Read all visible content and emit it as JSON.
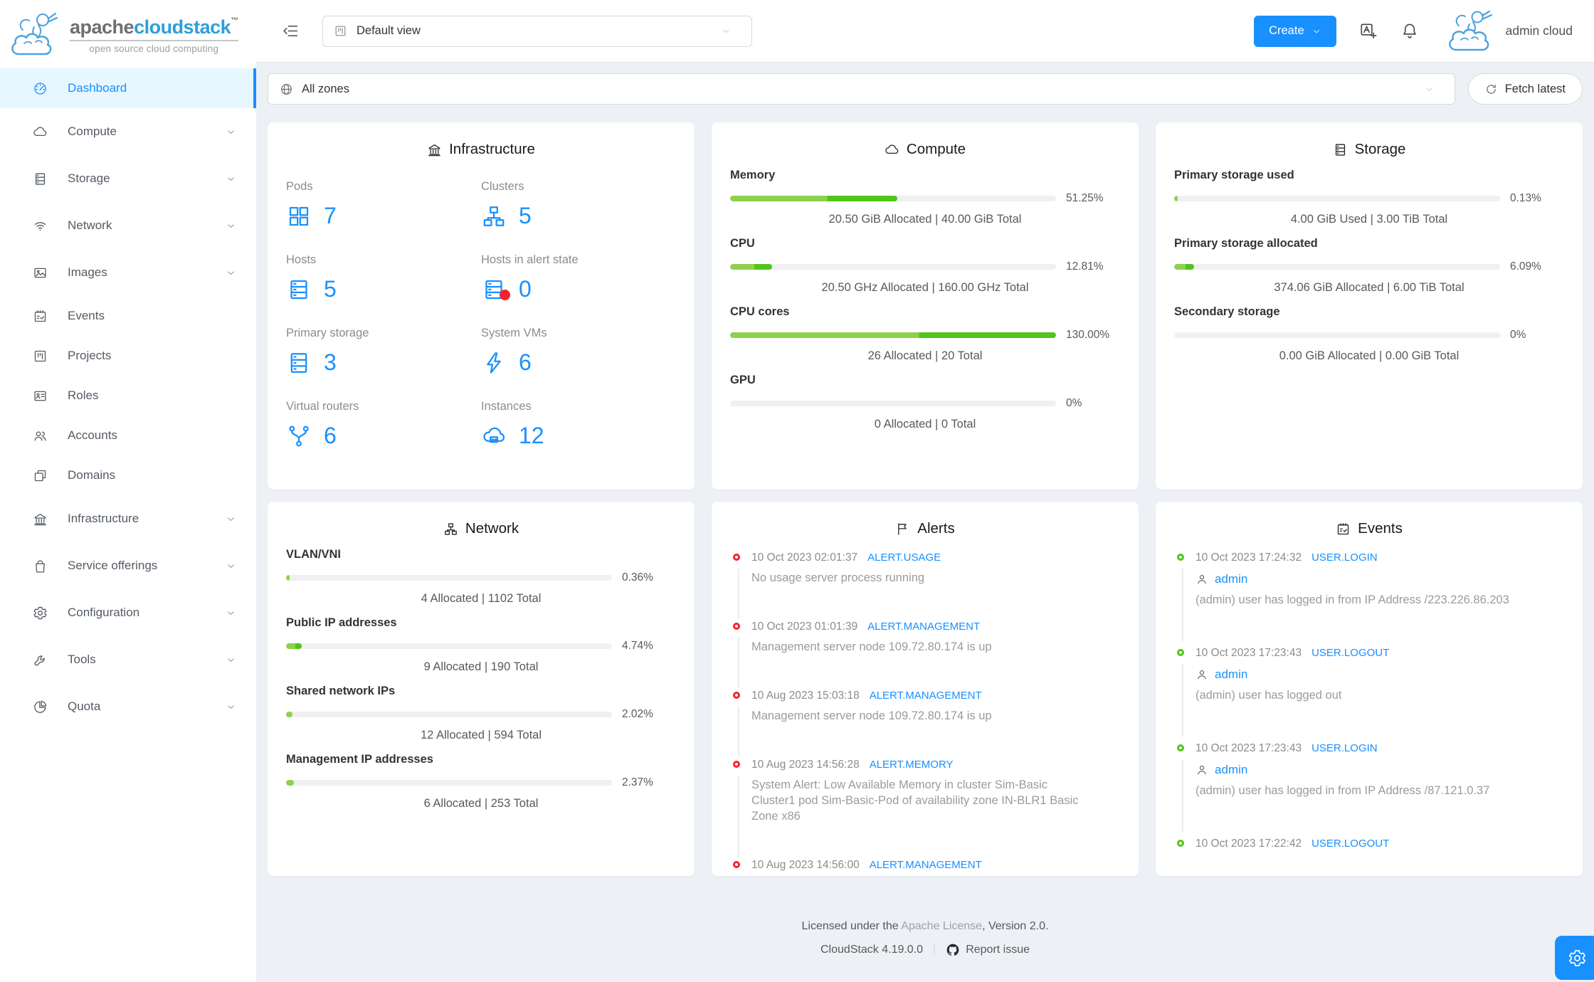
{
  "brand": {
    "word_gray": "apache",
    "word_blue": "cloudstack",
    "trademark": "™",
    "tagline": "open source cloud computing"
  },
  "topbar": {
    "view_label": "Default view",
    "create_label": "Create",
    "user_name": "admin cloud"
  },
  "zonebar": {
    "zone_label": "All zones",
    "fetch_label": "Fetch latest"
  },
  "icons": {
    "collapse": "menu-fold",
    "view": "project",
    "zone": "globe",
    "refresh": "reload",
    "translate": "translate",
    "notifications": "bell",
    "user": "user",
    "github": "github",
    "settings": "gear",
    "caret": "chevron"
  },
  "sidebar": [
    {
      "label": "Dashboard",
      "icon": "dashboard",
      "active": true
    },
    {
      "label": "Compute",
      "icon": "cloud",
      "expandable": true
    },
    {
      "label": "Storage",
      "icon": "database",
      "expandable": true
    },
    {
      "label": "Network",
      "icon": "wifi",
      "expandable": true
    },
    {
      "label": "Images",
      "icon": "picture",
      "expandable": true
    },
    {
      "label": "Events",
      "icon": "calendar-check"
    },
    {
      "label": "Projects",
      "icon": "project"
    },
    {
      "label": "Roles",
      "icon": "idcard"
    },
    {
      "label": "Accounts",
      "icon": "team"
    },
    {
      "label": "Domains",
      "icon": "block"
    },
    {
      "label": "Infrastructure",
      "icon": "bank",
      "expandable": true
    },
    {
      "label": "Service offerings",
      "icon": "shopping",
      "expandable": true
    },
    {
      "label": "Configuration",
      "icon": "gear",
      "expandable": true
    },
    {
      "label": "Tools",
      "icon": "wrench",
      "expandable": true
    },
    {
      "label": "Quota",
      "icon": "pie",
      "expandable": true
    }
  ],
  "infrastructure": {
    "title": "Infrastructure",
    "icon": "bank",
    "stats": [
      {
        "label": "Pods",
        "icon": "pods",
        "value": "7"
      },
      {
        "label": "Clusters",
        "icon": "cluster",
        "value": "5"
      },
      {
        "label": "Hosts",
        "icon": "server",
        "value": "5"
      },
      {
        "label": "Hosts in alert state",
        "icon": "server",
        "value": "0",
        "alert": true
      },
      {
        "label": "Primary storage",
        "icon": "database",
        "value": "3"
      },
      {
        "label": "System VMs",
        "icon": "bolt",
        "value": "6"
      },
      {
        "label": "Virtual routers",
        "icon": "fork",
        "value": "6"
      },
      {
        "label": "Instances",
        "icon": "cloud-server",
        "value": "12"
      }
    ]
  },
  "compute": {
    "title": "Compute",
    "icon": "cloud",
    "metrics": [
      {
        "label": "Memory",
        "percent": "51.25%",
        "fill": 51.25,
        "twotone": true,
        "detail": "20.50 GiB Allocated | 40.00 GiB Total"
      },
      {
        "label": "CPU",
        "percent": "12.81%",
        "fill": 12.81,
        "twotone": true,
        "detail": "20.50 GHz Allocated | 160.00 GHz Total"
      },
      {
        "label": "CPU cores",
        "percent": "130.00%",
        "fill": 130,
        "twotone": true,
        "detail": "26 Allocated | 20 Total"
      },
      {
        "label": "GPU",
        "percent": "0%",
        "fill": 0,
        "detail": "0 Allocated | 0 Total"
      }
    ]
  },
  "storage": {
    "title": "Storage",
    "icon": "database",
    "metrics": [
      {
        "label": "Primary storage used",
        "percent": "0.13%",
        "fill": 0.13,
        "detail": "4.00 GiB Used | 3.00 TiB Total"
      },
      {
        "label": "Primary storage allocated",
        "percent": "6.09%",
        "fill": 6.09,
        "twotone": true,
        "detail": "374.06 GiB Allocated | 6.00 TiB Total"
      },
      {
        "label": "Secondary storage",
        "percent": "0%",
        "fill": 0,
        "detail": "0.00 GiB Allocated | 0.00 GiB Total"
      }
    ]
  },
  "network": {
    "title": "Network",
    "icon": "cluster",
    "metrics": [
      {
        "label": "VLAN/VNI",
        "percent": "0.36%",
        "fill": 0.36,
        "detail": "4 Allocated | 1102 Total"
      },
      {
        "label": "Public IP addresses",
        "percent": "4.74%",
        "fill": 4.74,
        "twotone": true,
        "detail": "9 Allocated | 190 Total"
      },
      {
        "label": "Shared network IPs",
        "percent": "2.02%",
        "fill": 2.02,
        "detail": "12 Allocated | 594 Total"
      },
      {
        "label": "Management IP addresses",
        "percent": "2.37%",
        "fill": 2.37,
        "detail": "6 Allocated | 253 Total"
      }
    ]
  },
  "alerts": {
    "title": "Alerts",
    "icon": "flag",
    "items": [
      {
        "time": "10 Oct 2023 02:01:37",
        "type": "ALERT.USAGE",
        "text": "No usage server process running"
      },
      {
        "time": "10 Oct 2023 01:01:39",
        "type": "ALERT.MANAGEMENT",
        "text": "Management server node 109.72.80.174 is up"
      },
      {
        "time": "10 Aug 2023 15:03:18",
        "type": "ALERT.MANAGEMENT",
        "text": "Management server node 109.72.80.174 is up"
      },
      {
        "time": "10 Aug 2023 14:56:28",
        "type": "ALERT.MEMORY",
        "text": "System Alert: Low Available Memory in cluster Sim-Basic Cluster1 pod Sim-Basic-Pod of availability zone IN-BLR1 Basic Zone x86"
      },
      {
        "time": "10 Aug 2023 14:56:00",
        "type": "ALERT.MANAGEMENT",
        "text": ""
      }
    ]
  },
  "events": {
    "title": "Events",
    "icon": "calendar-check",
    "items": [
      {
        "time": "10 Oct 2023 17:24:32",
        "type": "USER.LOGIN",
        "user": "admin",
        "text": "(admin) user has logged in from IP Address /223.226.86.203"
      },
      {
        "time": "10 Oct 2023 17:23:43",
        "type": "USER.LOGOUT",
        "user": "admin",
        "text": "(admin) user has logged out"
      },
      {
        "time": "10 Oct 2023 17:23:43",
        "type": "USER.LOGIN",
        "user": "admin",
        "text": "(admin) user has logged in from IP Address /87.121.0.37"
      },
      {
        "time": "10 Oct 2023 17:22:42",
        "type": "USER.LOGOUT",
        "user": "",
        "text": ""
      }
    ]
  },
  "footer": {
    "license_pre": "Licensed under the ",
    "license_link": "Apache License",
    "license_post": ", Version 2.0.",
    "version": "CloudStack 4.19.0.0",
    "report_label": "Report issue"
  },
  "colors": {
    "accent_blue": "#1890ff",
    "active_bg": "#e6f7ff",
    "bar_green_light": "#8dd04d",
    "bar_green_dark": "#52c41a",
    "alert_red": "#f5222d",
    "event_green": "#52c41a",
    "page_bg": "#edf0f5"
  }
}
